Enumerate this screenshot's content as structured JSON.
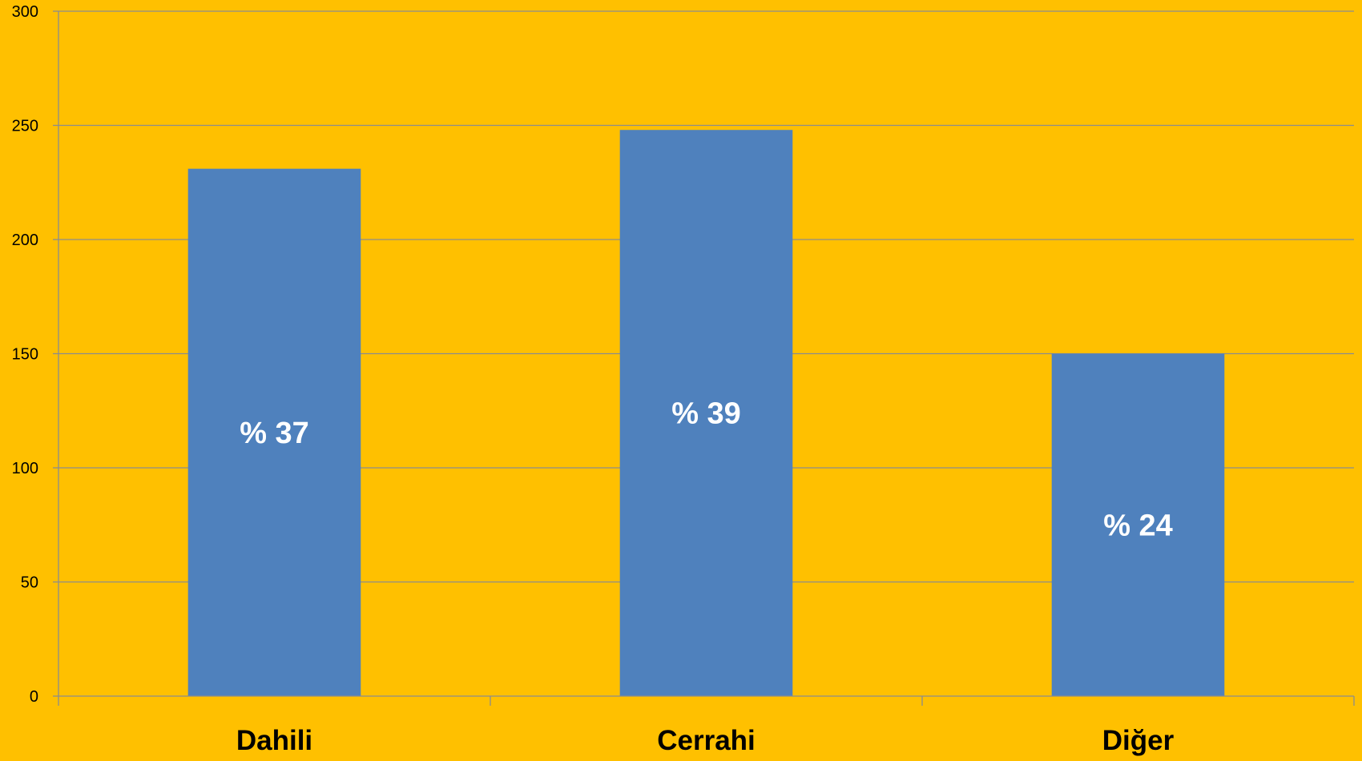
{
  "chart_data": {
    "type": "bar",
    "title": "",
    "xlabel": "",
    "ylabel": "",
    "categories": [
      "Dahili",
      "Cerrahi",
      "Diğer"
    ],
    "values": [
      231,
      248,
      150
    ],
    "data_labels": [
      "% 37",
      "% 39",
      "% 24"
    ],
    "ylim": [
      0,
      300
    ],
    "yticks": [
      0,
      50,
      100,
      150,
      200,
      250,
      300
    ],
    "grid": true,
    "legend": "none",
    "colors": {
      "background": "#FFC000",
      "bar": "#4F81BD",
      "gridline": "#8C8C8C",
      "data_label": "#FFFFFF"
    }
  }
}
